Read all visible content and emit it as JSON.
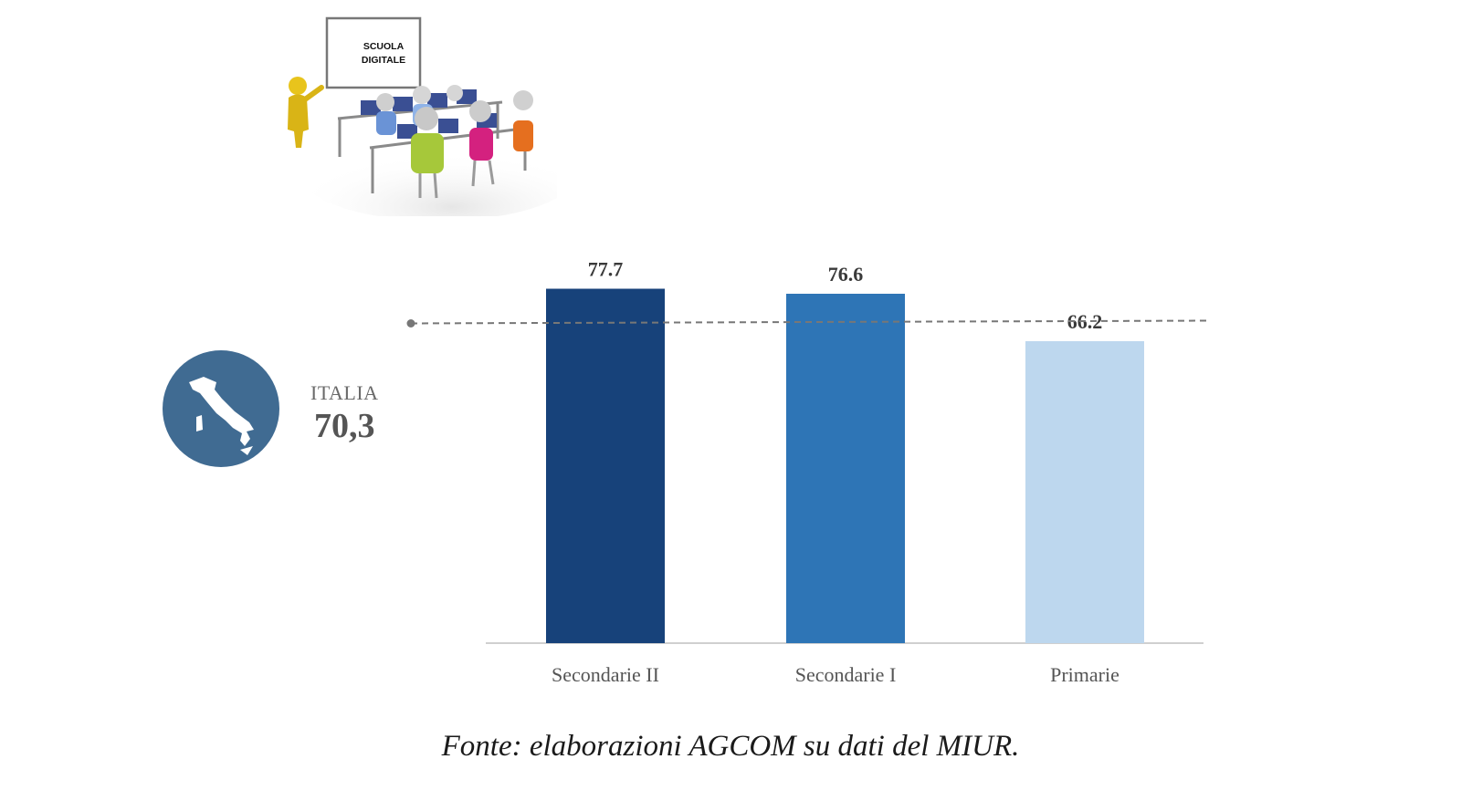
{
  "illustration": {
    "board_lines": [
      "SCUOLA",
      "DIGITALE"
    ]
  },
  "reference": {
    "label": "ITALIA",
    "value_text": "70,3",
    "value": 70.3,
    "icon": "italy-map-icon",
    "badge_color": "#406b92"
  },
  "chart_data": {
    "type": "bar",
    "categories": [
      "Secondarie II",
      "Secondarie I",
      "Primarie"
    ],
    "values": [
      77.7,
      76.6,
      66.2
    ],
    "value_labels": [
      "77.7",
      "76.6",
      "66.2"
    ],
    "colors": [
      "#17427a",
      "#2e75b6",
      "#bdd7ee"
    ],
    "ylim": [
      0,
      80
    ],
    "grid": false,
    "reference_line": {
      "value": 70.3,
      "style": "dashed",
      "color": "#777777"
    }
  },
  "source": "Fonte: elaborazioni AGCOM su dati del MIUR."
}
